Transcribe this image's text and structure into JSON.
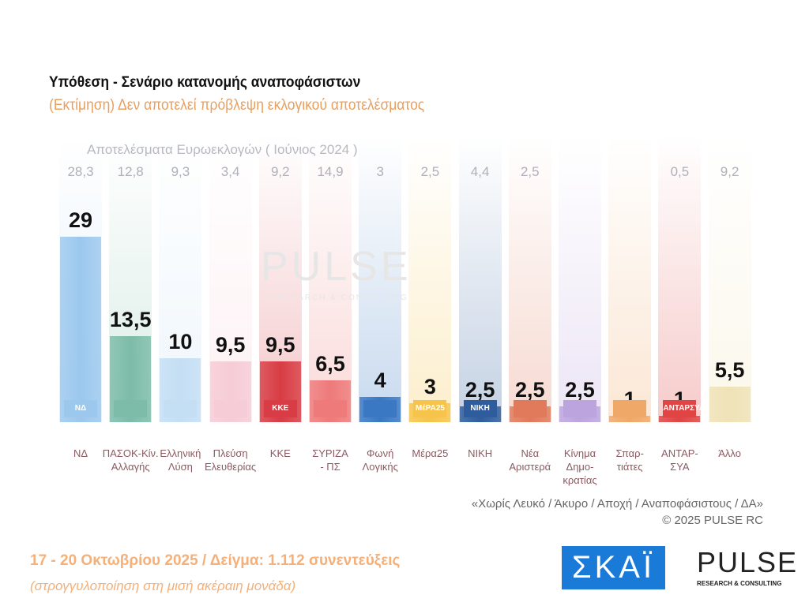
{
  "chart_data": {
    "type": "bar",
    "title": "Υπόθεση - Σενάριο κατανομής αναποφάσιστων",
    "subtitle": "(Εκτίμηση)   Δεν αποτελεί πρόβλεψη εκλογικού αποτελέσματος",
    "previous_heading": "Αποτελέσματα Ευρωεκλογών  ( Ιούνιος 2024 )",
    "categories": [
      "ΝΔ",
      "ΠΑΣΟΚ-Κίν. Αλλαγής",
      "Ελληνική Λύση",
      "Πλεύση Ελευθερίας",
      "ΚΚΕ",
      "ΣΥΡΙΖΑ - ΠΣ",
      "Φωνή Λογικής",
      "Μέρα25",
      "ΝΙΚΗ",
      "Νέα Αριστερά",
      "Κίνημα Δημο-κρατίας",
      "Σπαρ-τιάτες",
      "ΑΝΤΑΡ-ΣΥΑ",
      "Άλλο"
    ],
    "category_lines": [
      [
        "ΝΔ"
      ],
      [
        "ΠΑΣΟΚ-Κίν.",
        "Αλλαγής"
      ],
      [
        "Ελληνική",
        "Λύση"
      ],
      [
        "Πλεύση",
        "Ελευθερίας"
      ],
      [
        "ΚΚΕ"
      ],
      [
        "ΣΥΡΙΖΑ",
        "- ΠΣ"
      ],
      [
        "Φωνή",
        "Λογικής"
      ],
      [
        "Μέρα25"
      ],
      [
        "ΝΙΚΗ"
      ],
      [
        "Νέα",
        "Αριστερά"
      ],
      [
        "Κίνημα",
        "Δημο-",
        "κρατίας"
      ],
      [
        "Σπαρ-",
        "τιάτες"
      ],
      [
        "ΑΝΤΑΡ-",
        "ΣΥΑ"
      ],
      [
        "Άλλο"
      ]
    ],
    "values": [
      29,
      13.5,
      10,
      9.5,
      9.5,
      6.5,
      4,
      3,
      2.5,
      2.5,
      2.5,
      1,
      1,
      5.5
    ],
    "value_labels": [
      "29",
      "13,5",
      "10",
      "9,5",
      "9,5",
      "6,5",
      "4",
      "3",
      "2,5",
      "2,5",
      "2,5",
      "1",
      "1",
      "5,5"
    ],
    "previous_values": [
      "28,3",
      "12,8",
      "9,3",
      "3,4",
      "9,2",
      "14,9",
      "3",
      "2,5",
      "4,4",
      "2,5",
      "",
      "",
      "0,5",
      "9,2"
    ],
    "logos": [
      "ΝΔ",
      "",
      "",
      "",
      "ΚΚΕ",
      "",
      "",
      "ΜέΡΑ25",
      "ΝΙΚΗ",
      "",
      "",
      "",
      "ΑΝΤΑΡΣΥΑ",
      ""
    ],
    "colors": [
      "#9cc8ee",
      "#7cbca8",
      "#c4def4",
      "#f6ccd6",
      "#d83c44",
      "#ee7a7a",
      "#3a78c4",
      "#f6c44a",
      "#2e5c9c",
      "#e07a5a",
      "#bca4de",
      "#f0a868",
      "#e04444",
      "#efe2b6"
    ],
    "ylim": [
      0,
      30
    ],
    "grid": false
  },
  "footer": {
    "note": "«Χωρίς Λευκό / Άκυρο / Αποχή / Αναποφάσιστους / ΔΑ»",
    "copyright": "©  2025  PULSE RC",
    "date_sample": "17 - 20 Οκτωβρίου 2025  /  Δείγμα:  1.112 συνεντεύξεις",
    "rounding": "(στρογγυλοποίηση στη μισή ακέραιη μονάδα)"
  },
  "logos": {
    "skai": "ΣΚΑΪ",
    "pulse": "PULSE",
    "pulse_sub": "RESEARCH & CONSULTING"
  }
}
